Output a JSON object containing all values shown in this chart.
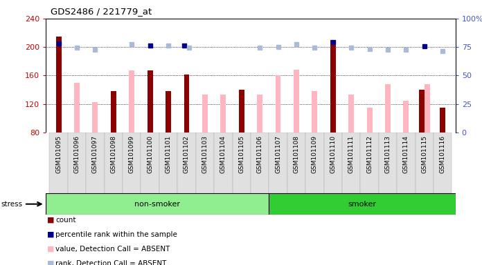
{
  "title": "GDS2486 / 221779_at",
  "samples": [
    "GSM101095",
    "GSM101096",
    "GSM101097",
    "GSM101098",
    "GSM101099",
    "GSM101100",
    "GSM101101",
    "GSM101102",
    "GSM101103",
    "GSM101104",
    "GSM101105",
    "GSM101106",
    "GSM101107",
    "GSM101108",
    "GSM101109",
    "GSM101110",
    "GSM101111",
    "GSM101112",
    "GSM101113",
    "GSM101114",
    "GSM101115",
    "GSM101116"
  ],
  "count_values": [
    215,
    null,
    null,
    138,
    null,
    167,
    138,
    161,
    null,
    null,
    140,
    null,
    null,
    null,
    null,
    210,
    null,
    null,
    null,
    null,
    140,
    115
  ],
  "absent_values": [
    null,
    150,
    123,
    null,
    167,
    null,
    null,
    null,
    133,
    133,
    null,
    133,
    160,
    168,
    138,
    null,
    133,
    115,
    148,
    125,
    148,
    null
  ],
  "percentile_rank": [
    205,
    null,
    null,
    null,
    null,
    202,
    null,
    202,
    null,
    null,
    null,
    null,
    null,
    null,
    null,
    207,
    null,
    null,
    null,
    null,
    201,
    null
  ],
  "absent_rank": [
    null,
    199,
    196,
    null,
    204,
    null,
    202,
    199,
    null,
    null,
    null,
    199,
    200,
    204,
    199,
    null,
    199,
    197,
    196,
    196,
    null,
    194
  ],
  "ylim_left": [
    80,
    240
  ],
  "ylim_right": [
    0,
    100
  ],
  "yticks_left": [
    80,
    120,
    160,
    200,
    240
  ],
  "yticks_right": [
    0,
    25,
    50,
    75,
    100
  ],
  "non_smoker_count": 12,
  "group_labels": [
    "non-smoker",
    "smoker"
  ],
  "group_color_light": "#90EE90",
  "group_color_dark": "#32CD32",
  "count_color": "#8B0000",
  "absent_value_color": "#FFB6C1",
  "percentile_color": "#00008B",
  "absent_rank_color": "#AABBD8",
  "axis_color_left": "#CC0000",
  "axis_color_right": "#4455CC",
  "legend_items": [
    {
      "label": "count",
      "color": "#8B0000"
    },
    {
      "label": "percentile rank within the sample",
      "color": "#00008B"
    },
    {
      "label": "value, Detection Call = ABSENT",
      "color": "#FFB6C1"
    },
    {
      "label": "rank, Detection Call = ABSENT",
      "color": "#AABBD8"
    }
  ]
}
